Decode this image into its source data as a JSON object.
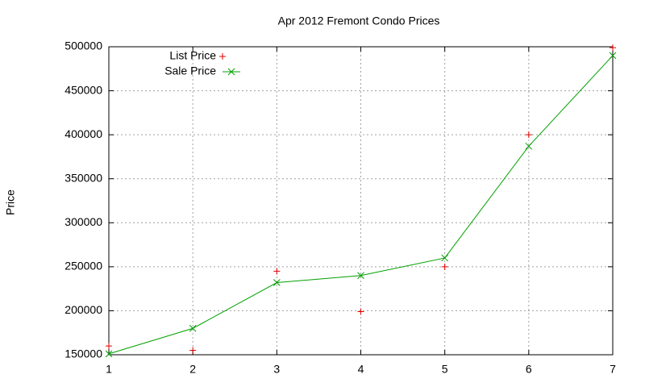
{
  "chart_data": {
    "type": "line",
    "title": "Apr 2012 Fremont Condo Prices",
    "y_label": "Price",
    "x": [
      1,
      2,
      3,
      4,
      5,
      6,
      7
    ],
    "series": [
      {
        "name": "List Price",
        "color": "#e00000",
        "mode": "points",
        "marker": "plus",
        "values": [
          160000,
          155000,
          245000,
          199000,
          250000,
          400000,
          499000
        ]
      },
      {
        "name": "Sale Price",
        "color": "#00a000",
        "mode": "linespoints",
        "marker": "cross",
        "values": [
          151000,
          180000,
          232000,
          240000,
          260000,
          387000,
          490000
        ]
      }
    ],
    "xlim": [
      1,
      7
    ],
    "xticks": [
      1,
      2,
      3,
      4,
      5,
      6,
      7
    ],
    "ylim": [
      150000,
      500000
    ],
    "yticks": [
      150000,
      200000,
      250000,
      300000,
      350000,
      400000,
      450000,
      500000
    ],
    "grid": true,
    "legend": "top-left"
  }
}
